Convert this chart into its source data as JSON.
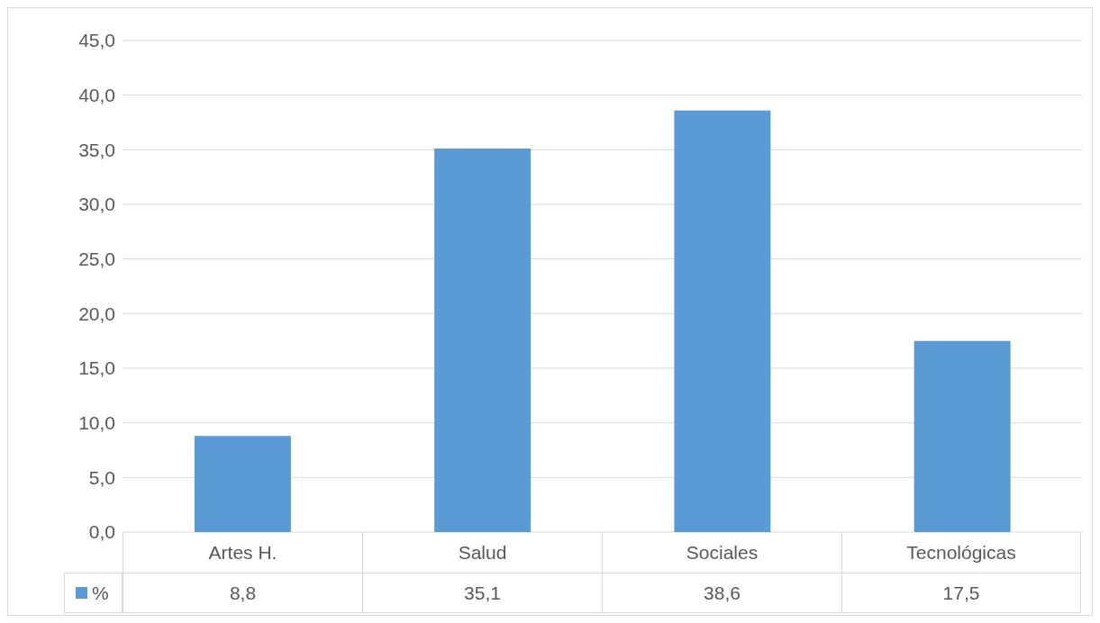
{
  "chart_data": {
    "type": "bar",
    "categories": [
      "Artes H.",
      "Salud",
      "Sociales",
      "Tecnológicas"
    ],
    "series": [
      {
        "name": "%",
        "color": "#5b9bd5",
        "values": [
          8.8,
          35.1,
          38.6,
          17.5
        ],
        "value_labels": [
          "8,8",
          "35,1",
          "38,6",
          "17,5"
        ]
      }
    ],
    "ylim": [
      0,
      45
    ],
    "yticks": [
      {
        "value": 0,
        "label": "0,0"
      },
      {
        "value": 5,
        "label": "5,0"
      },
      {
        "value": 10,
        "label": "10,0"
      },
      {
        "value": 15,
        "label": "15,0"
      },
      {
        "value": 20,
        "label": "20,0"
      },
      {
        "value": 25,
        "label": "25,0"
      },
      {
        "value": 30,
        "label": "30,0"
      },
      {
        "value": 35,
        "label": "35,0"
      },
      {
        "value": 40,
        "label": "40,0"
      },
      {
        "value": 45,
        "label": "45,0"
      }
    ],
    "grid": "y",
    "legend": "bottom"
  }
}
